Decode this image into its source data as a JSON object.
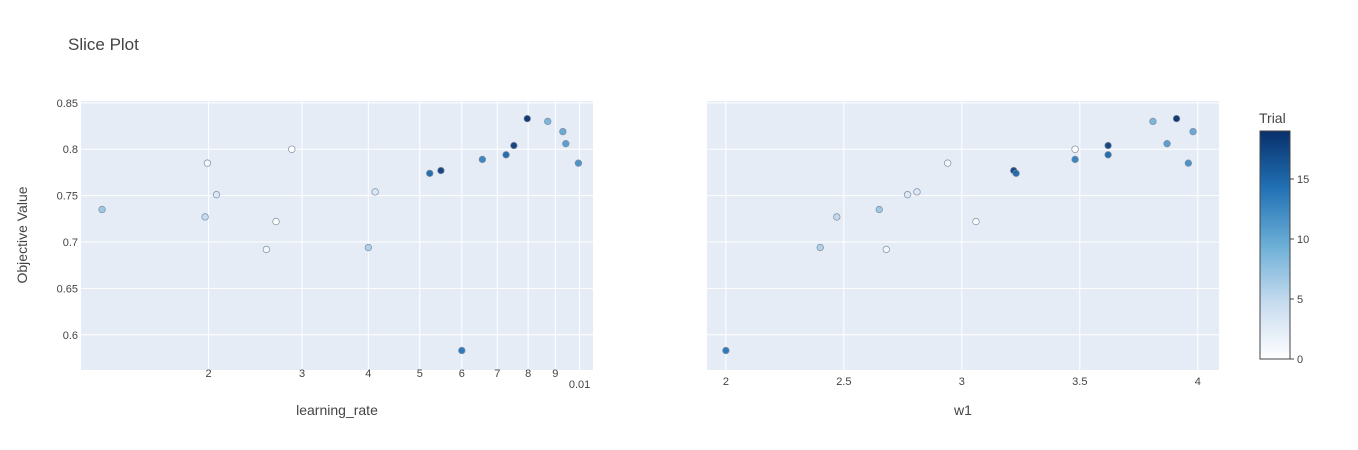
{
  "chart_data": {
    "type": "scatter",
    "title": "Slice Plot",
    "ylabel": "Objective Value",
    "ylim": [
      0.562,
      0.852
    ],
    "yticks": [
      "0.6",
      "0.65",
      "0.7",
      "0.75",
      "0.8",
      "0.85"
    ],
    "ytick_values": [
      0.6,
      0.65,
      0.7,
      0.75,
      0.8,
      0.85
    ],
    "plot_bg": "#e5ecf6",
    "colorscale": [
      "#ffffff",
      "#c6dbef",
      "#6baed6",
      "#2171b5",
      "#08306b"
    ],
    "colorbar": {
      "title": "Trial",
      "range": [
        0,
        19
      ],
      "ticks": [
        0,
        5,
        10,
        15
      ],
      "tick_labels": [
        "0",
        "5",
        "10",
        "15"
      ]
    },
    "panels": [
      {
        "xlabel": "learning_rate",
        "xscale": "log",
        "xlim": [
          0.00115,
          0.0106
        ],
        "xticks": [
          0.002,
          0.003,
          0.004,
          0.005,
          0.006,
          0.007,
          0.008,
          0.009,
          0.01
        ],
        "xtick_labels": [
          "2",
          "3",
          "4",
          "5",
          "6",
          "7",
          "8",
          "9",
          "0.01"
        ],
        "points": [
          {
            "x": 0.00126,
            "y": 0.735,
            "trial": 7
          },
          {
            "x": 0.00197,
            "y": 0.727,
            "trial": 5
          },
          {
            "x": 0.00199,
            "y": 0.785,
            "trial": 1
          },
          {
            "x": 0.00207,
            "y": 0.751,
            "trial": 3
          },
          {
            "x": 0.00257,
            "y": 0.692,
            "trial": 1
          },
          {
            "x": 0.00268,
            "y": 0.722,
            "trial": 0
          },
          {
            "x": 0.00287,
            "y": 0.8,
            "trial": 0
          },
          {
            "x": 0.004,
            "y": 0.694,
            "trial": 6
          },
          {
            "x": 0.00412,
            "y": 0.754,
            "trial": 3
          },
          {
            "x": 0.00522,
            "y": 0.774,
            "trial": 15
          },
          {
            "x": 0.00548,
            "y": 0.777,
            "trial": 18
          },
          {
            "x": 0.006,
            "y": 0.583,
            "trial": 14
          },
          {
            "x": 0.00656,
            "y": 0.789,
            "trial": 13
          },
          {
            "x": 0.00727,
            "y": 0.794,
            "trial": 15
          },
          {
            "x": 0.00752,
            "y": 0.804,
            "trial": 18
          },
          {
            "x": 0.00797,
            "y": 0.833,
            "trial": 19
          },
          {
            "x": 0.00871,
            "y": 0.83,
            "trial": 9
          },
          {
            "x": 0.0093,
            "y": 0.819,
            "trial": 10
          },
          {
            "x": 0.00942,
            "y": 0.806,
            "trial": 11
          },
          {
            "x": 0.00995,
            "y": 0.785,
            "trial": 12
          }
        ]
      },
      {
        "xlabel": "w1",
        "xscale": "linear",
        "xlim": [
          1.92,
          4.09
        ],
        "xticks": [
          2,
          2.5,
          3,
          3.5,
          4
        ],
        "xtick_labels": [
          "2",
          "2.5",
          "3",
          "3.5",
          "4"
        ],
        "points": [
          {
            "x": 2.0,
            "y": 0.583,
            "trial": 14
          },
          {
            "x": 2.4,
            "y": 0.694,
            "trial": 6
          },
          {
            "x": 2.47,
            "y": 0.727,
            "trial": 5
          },
          {
            "x": 2.65,
            "y": 0.735,
            "trial": 7
          },
          {
            "x": 2.68,
            "y": 0.692,
            "trial": 1
          },
          {
            "x": 2.77,
            "y": 0.751,
            "trial": 3
          },
          {
            "x": 2.81,
            "y": 0.754,
            "trial": 3
          },
          {
            "x": 2.94,
            "y": 0.785,
            "trial": 1
          },
          {
            "x": 3.06,
            "y": 0.722,
            "trial": 0
          },
          {
            "x": 3.22,
            "y": 0.777,
            "trial": 18
          },
          {
            "x": 3.23,
            "y": 0.774,
            "trial": 15
          },
          {
            "x": 3.48,
            "y": 0.8,
            "trial": 0
          },
          {
            "x": 3.48,
            "y": 0.789,
            "trial": 13
          },
          {
            "x": 3.62,
            "y": 0.804,
            "trial": 18
          },
          {
            "x": 3.62,
            "y": 0.794,
            "trial": 15
          },
          {
            "x": 3.81,
            "y": 0.83,
            "trial": 9
          },
          {
            "x": 3.87,
            "y": 0.806,
            "trial": 11
          },
          {
            "x": 3.91,
            "y": 0.833,
            "trial": 19
          },
          {
            "x": 3.96,
            "y": 0.785,
            "trial": 12
          },
          {
            "x": 3.98,
            "y": 0.819,
            "trial": 10
          }
        ]
      }
    ]
  }
}
